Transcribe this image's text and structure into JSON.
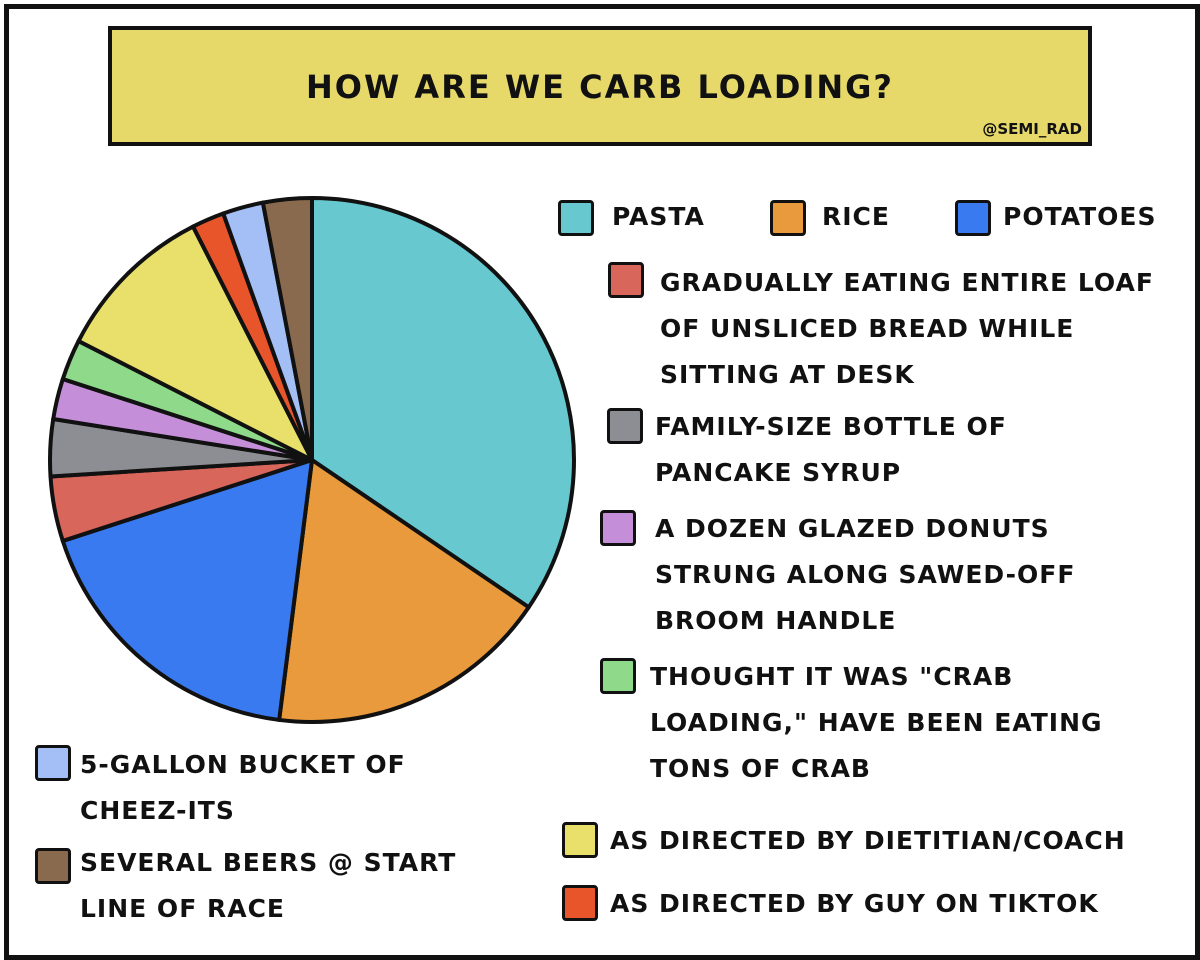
{
  "chart_data": {
    "type": "pie",
    "title": "HOW ARE WE CARB LOADING?",
    "credit": "@SEMI_RAD",
    "categories": [
      "PASTA",
      "RICE",
      "POTATOES",
      "GRADUALLY EATING ENTIRE LOAF OF UNSLICED BREAD WHILE SITTING AT DESK",
      "FAMILY-SIZE BOTTLE OF PANCAKE SYRUP",
      "A DOZEN GLAZED DONUTS STRUNG ALONG SAWED-OFF BROOM HANDLE",
      "THOUGHT IT WAS \"CRAB LOADING,\" HAVE BEEN EATING TONS OF CRAB",
      "AS DIRECTED BY DIETITIAN/COACH",
      "AS DIRECTED BY GUY ON TIKTOK",
      "5-GALLON BUCKET OF CHEEZ-ITS",
      "SEVERAL BEERS @ START LINE OF RACE"
    ],
    "values": [
      34.5,
      17.5,
      18,
      4,
      3.5,
      2.5,
      2.5,
      10,
      2,
      2.5,
      3
    ],
    "colors": [
      "#67c8cf",
      "#e89a3c",
      "#3a7af0",
      "#d9665b",
      "#8d8e93",
      "#c48fd8",
      "#8fd98a",
      "#e8e06a",
      "#e8552a",
      "#a3bff5",
      "#8a6a4e"
    ]
  }
}
